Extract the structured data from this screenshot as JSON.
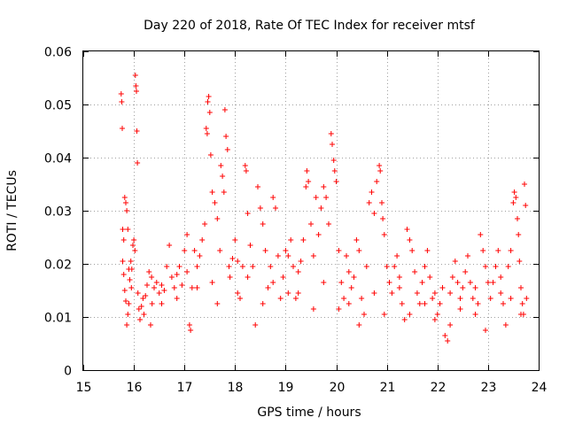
{
  "chart_data": {
    "type": "scatter",
    "title": "Day 220 of 2018, Rate Of TEC Index for receiver mtsf",
    "xlabel": "GPS time / hours",
    "ylabel": "ROTI / TECUs",
    "xlim": [
      15,
      24
    ],
    "ylim": [
      0,
      0.06
    ],
    "xticks": [
      "15",
      "16",
      "17",
      "18",
      "19",
      "20",
      "21",
      "22",
      "23",
      "24"
    ],
    "yticks": [
      "0",
      "0.01",
      "0.02",
      "0.03",
      "0.04",
      "0.05",
      "0.06"
    ],
    "grid": true,
    "marker": "+",
    "color": "#ff0000",
    "series": [
      {
        "name": "ROTI",
        "points": [
          [
            15.75,
            0.052
          ],
          [
            15.76,
            0.0505
          ],
          [
            15.77,
            0.0455
          ],
          [
            15.78,
            0.0265
          ],
          [
            15.8,
            0.0245
          ],
          [
            15.82,
            0.0325
          ],
          [
            15.84,
            0.0315
          ],
          [
            15.86,
            0.03
          ],
          [
            15.88,
            0.0265
          ],
          [
            15.9,
            0.019
          ],
          [
            15.78,
            0.0205
          ],
          [
            15.8,
            0.018
          ],
          [
            15.82,
            0.015
          ],
          [
            15.84,
            0.013
          ],
          [
            15.86,
            0.0085
          ],
          [
            15.88,
            0.0105
          ],
          [
            15.9,
            0.0125
          ],
          [
            15.92,
            0.017
          ],
          [
            15.94,
            0.0205
          ],
          [
            15.96,
            0.019
          ],
          [
            15.98,
            0.0235
          ],
          [
            16.0,
            0.0245
          ],
          [
            16.02,
            0.0225
          ],
          [
            16.03,
            0.0555
          ],
          [
            16.04,
            0.0535
          ],
          [
            16.05,
            0.0525
          ],
          [
            16.06,
            0.045
          ],
          [
            16.07,
            0.039
          ],
          [
            16.08,
            0.0145
          ],
          [
            16.1,
            0.0115
          ],
          [
            16.12,
            0.0095
          ],
          [
            16.15,
            0.012
          ],
          [
            16.18,
            0.0135
          ],
          [
            16.2,
            0.0105
          ],
          [
            16.23,
            0.014
          ],
          [
            16.26,
            0.016
          ],
          [
            16.3,
            0.0185
          ],
          [
            16.33,
            0.0085
          ],
          [
            16.36,
            0.0125
          ],
          [
            16.4,
            0.0155
          ],
          [
            16.45,
            0.0165
          ],
          [
            16.5,
            0.0145
          ],
          [
            16.55,
            0.016
          ],
          [
            16.6,
            0.015
          ],
          [
            16.65,
            0.0195
          ],
          [
            16.7,
            0.0235
          ],
          [
            16.75,
            0.0175
          ],
          [
            16.8,
            0.0155
          ],
          [
            16.85,
            0.018
          ],
          [
            16.9,
            0.0195
          ],
          [
            16.95,
            0.016
          ],
          [
            17.0,
            0.0225
          ],
          [
            17.05,
            0.0255
          ],
          [
            17.1,
            0.0085
          ],
          [
            17.12,
            0.0075
          ],
          [
            17.15,
            0.0155
          ],
          [
            17.2,
            0.0225
          ],
          [
            17.25,
            0.0195
          ],
          [
            17.3,
            0.0215
          ],
          [
            17.35,
            0.0245
          ],
          [
            17.4,
            0.0275
          ],
          [
            17.43,
            0.0455
          ],
          [
            17.45,
            0.0445
          ],
          [
            17.46,
            0.0505
          ],
          [
            17.48,
            0.0515
          ],
          [
            17.5,
            0.0485
          ],
          [
            17.52,
            0.0405
          ],
          [
            17.55,
            0.0335
          ],
          [
            17.6,
            0.0315
          ],
          [
            17.65,
            0.0285
          ],
          [
            17.7,
            0.0225
          ],
          [
            17.72,
            0.0385
          ],
          [
            17.75,
            0.0365
          ],
          [
            17.78,
            0.0335
          ],
          [
            17.8,
            0.049
          ],
          [
            17.82,
            0.044
          ],
          [
            17.85,
            0.0415
          ],
          [
            17.88,
            0.0195
          ],
          [
            17.9,
            0.0175
          ],
          [
            17.95,
            0.021
          ],
          [
            18.0,
            0.0245
          ],
          [
            18.05,
            0.0205
          ],
          [
            18.1,
            0.0135
          ],
          [
            18.15,
            0.0195
          ],
          [
            18.2,
            0.0385
          ],
          [
            18.22,
            0.0375
          ],
          [
            18.25,
            0.0295
          ],
          [
            18.3,
            0.0235
          ],
          [
            18.35,
            0.0195
          ],
          [
            18.4,
            0.0085
          ],
          [
            18.45,
            0.0345
          ],
          [
            18.5,
            0.0305
          ],
          [
            18.55,
            0.0275
          ],
          [
            18.6,
            0.0225
          ],
          [
            18.65,
            0.0155
          ],
          [
            18.7,
            0.0195
          ],
          [
            18.75,
            0.0325
          ],
          [
            18.8,
            0.0305
          ],
          [
            18.85,
            0.0215
          ],
          [
            18.9,
            0.0135
          ],
          [
            18.95,
            0.0175
          ],
          [
            19.0,
            0.0225
          ],
          [
            19.05,
            0.0215
          ],
          [
            19.1,
            0.0245
          ],
          [
            19.15,
            0.0195
          ],
          [
            19.2,
            0.0135
          ],
          [
            19.25,
            0.0185
          ],
          [
            19.3,
            0.0205
          ],
          [
            19.35,
            0.0245
          ],
          [
            19.4,
            0.0345
          ],
          [
            19.42,
            0.0375
          ],
          [
            19.45,
            0.0355
          ],
          [
            19.5,
            0.0275
          ],
          [
            19.55,
            0.0215
          ],
          [
            19.6,
            0.0325
          ],
          [
            19.65,
            0.0255
          ],
          [
            19.7,
            0.0305
          ],
          [
            19.75,
            0.0345
          ],
          [
            19.8,
            0.0325
          ],
          [
            19.85,
            0.0275
          ],
          [
            19.9,
            0.0445
          ],
          [
            19.92,
            0.0425
          ],
          [
            19.95,
            0.0395
          ],
          [
            19.97,
            0.0375
          ],
          [
            20.0,
            0.0355
          ],
          [
            20.05,
            0.0225
          ],
          [
            20.1,
            0.0165
          ],
          [
            20.15,
            0.0135
          ],
          [
            20.2,
            0.0215
          ],
          [
            20.25,
            0.0185
          ],
          [
            20.3,
            0.0155
          ],
          [
            20.35,
            0.0175
          ],
          [
            20.4,
            0.0245
          ],
          [
            20.45,
            0.0225
          ],
          [
            20.5,
            0.0135
          ],
          [
            20.55,
            0.0105
          ],
          [
            20.6,
            0.0195
          ],
          [
            20.65,
            0.0315
          ],
          [
            20.7,
            0.0335
          ],
          [
            20.75,
            0.0295
          ],
          [
            20.8,
            0.0355
          ],
          [
            20.85,
            0.0385
          ],
          [
            20.87,
            0.0375
          ],
          [
            20.9,
            0.0315
          ],
          [
            20.92,
            0.0285
          ],
          [
            20.95,
            0.0255
          ],
          [
            21.0,
            0.0195
          ],
          [
            21.05,
            0.0165
          ],
          [
            21.1,
            0.0145
          ],
          [
            21.15,
            0.0195
          ],
          [
            21.2,
            0.0215
          ],
          [
            21.25,
            0.0175
          ],
          [
            21.3,
            0.0125
          ],
          [
            21.35,
            0.0095
          ],
          [
            21.4,
            0.0265
          ],
          [
            21.45,
            0.0245
          ],
          [
            21.5,
            0.0225
          ],
          [
            21.55,
            0.0185
          ],
          [
            21.6,
            0.0145
          ],
          [
            21.65,
            0.0125
          ],
          [
            21.7,
            0.0165
          ],
          [
            21.75,
            0.0195
          ],
          [
            21.8,
            0.0225
          ],
          [
            21.85,
            0.0175
          ],
          [
            21.9,
            0.0135
          ],
          [
            21.95,
            0.0095
          ],
          [
            22.0,
            0.0105
          ],
          [
            22.05,
            0.0125
          ],
          [
            22.1,
            0.0155
          ],
          [
            22.15,
            0.0065
          ],
          [
            22.2,
            0.0055
          ],
          [
            22.25,
            0.0085
          ],
          [
            22.3,
            0.0175
          ],
          [
            22.35,
            0.0205
          ],
          [
            22.4,
            0.0165
          ],
          [
            22.45,
            0.0135
          ],
          [
            22.5,
            0.0155
          ],
          [
            22.55,
            0.0185
          ],
          [
            22.6,
            0.0215
          ],
          [
            22.65,
            0.0165
          ],
          [
            22.7,
            0.0135
          ],
          [
            22.75,
            0.0105
          ],
          [
            22.8,
            0.0125
          ],
          [
            22.85,
            0.0255
          ],
          [
            22.9,
            0.0225
          ],
          [
            22.95,
            0.0195
          ],
          [
            23.0,
            0.0165
          ],
          [
            23.05,
            0.0135
          ],
          [
            23.1,
            0.0165
          ],
          [
            23.15,
            0.0195
          ],
          [
            23.2,
            0.0225
          ],
          [
            23.25,
            0.0175
          ],
          [
            23.3,
            0.0125
          ],
          [
            23.35,
            0.0085
          ],
          [
            23.4,
            0.0195
          ],
          [
            23.45,
            0.0225
          ],
          [
            23.5,
            0.0315
          ],
          [
            23.52,
            0.0335
          ],
          [
            23.55,
            0.0325
          ],
          [
            23.58,
            0.0285
          ],
          [
            23.6,
            0.0255
          ],
          [
            23.62,
            0.0205
          ],
          [
            23.65,
            0.0155
          ],
          [
            23.68,
            0.0125
          ],
          [
            23.7,
            0.0105
          ],
          [
            23.72,
            0.035
          ],
          [
            23.74,
            0.031
          ],
          [
            23.76,
            0.0135
          ],
          [
            15.95,
            0.0155
          ],
          [
            16.35,
            0.0175
          ],
          [
            16.85,
            0.0135
          ],
          [
            17.25,
            0.0155
          ],
          [
            17.65,
            0.0125
          ],
          [
            18.05,
            0.0145
          ],
          [
            18.55,
            0.0125
          ],
          [
            19.05,
            0.0145
          ],
          [
            19.55,
            0.0115
          ],
          [
            20.05,
            0.0115
          ],
          [
            20.45,
            0.0085
          ],
          [
            20.95,
            0.0105
          ],
          [
            21.45,
            0.0105
          ],
          [
            21.95,
            0.0145
          ],
          [
            22.45,
            0.0115
          ],
          [
            22.95,
            0.0075
          ],
          [
            23.45,
            0.0135
          ],
          [
            16.55,
            0.0125
          ],
          [
            17.05,
            0.0185
          ],
          [
            17.55,
            0.0165
          ],
          [
            18.25,
            0.0175
          ],
          [
            18.75,
            0.0165
          ],
          [
            19.25,
            0.0145
          ],
          [
            19.75,
            0.0165
          ],
          [
            20.25,
            0.0125
          ],
          [
            20.75,
            0.0145
          ],
          [
            21.25,
            0.0155
          ],
          [
            21.75,
            0.0125
          ],
          [
            22.25,
            0.0145
          ],
          [
            22.75,
            0.0155
          ],
          [
            23.25,
            0.0145
          ],
          [
            23.65,
            0.0105
          ]
        ]
      }
    ]
  }
}
